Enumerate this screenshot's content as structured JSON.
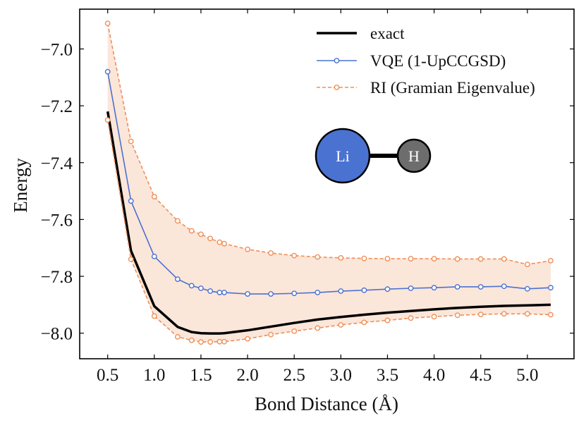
{
  "chart_data": {
    "type": "line",
    "title": "",
    "xlabel": "Bond Distance (Å)",
    "ylabel": "Energy",
    "xlim": [
      0.2,
      5.5
    ],
    "ylim": [
      -8.09,
      -6.86
    ],
    "grid": false,
    "legend_position": "top-right",
    "x_ticks": [
      0.5,
      1.0,
      1.5,
      2.0,
      2.5,
      3.0,
      3.5,
      4.0,
      4.5,
      5.0
    ],
    "x_tick_labels": [
      "0.5",
      "1.0",
      "1.5",
      "2.0",
      "2.5",
      "3.0",
      "3.5",
      "4.0",
      "4.5",
      "5.0"
    ],
    "y_ticks": [
      -8.0,
      -7.8,
      -7.6,
      -7.4,
      -7.2,
      -7.0
    ],
    "y_tick_labels": [
      "−8.0",
      "−7.8",
      "−7.6",
      "−7.4",
      "−7.2",
      "−7.0"
    ],
    "series": [
      {
        "name": "exact",
        "color": "#000000",
        "style": "solid",
        "markers": false,
        "x": [
          0.5,
          0.75,
          1.0,
          1.25,
          1.4,
          1.5,
          1.6,
          1.7,
          1.75,
          2.0,
          2.25,
          2.5,
          2.75,
          3.0,
          3.25,
          3.5,
          3.75,
          4.0,
          4.25,
          4.5,
          4.75,
          5.0,
          5.25
        ],
        "values": [
          -7.22,
          -7.71,
          -7.905,
          -7.978,
          -7.996,
          -8.0,
          -8.001,
          -8.001,
          -8.0,
          -7.99,
          -7.977,
          -7.964,
          -7.952,
          -7.943,
          -7.935,
          -7.928,
          -7.922,
          -7.916,
          -7.911,
          -7.907,
          -7.904,
          -7.902,
          -7.9
        ]
      },
      {
        "name": "VQE (1-UpCCGSD)",
        "color": "#4a72d0",
        "style": "solid",
        "markers": true,
        "x": [
          0.5,
          0.75,
          1.0,
          1.25,
          1.4,
          1.5,
          1.6,
          1.7,
          1.75,
          2.0,
          2.25,
          2.5,
          2.75,
          3.0,
          3.25,
          3.5,
          3.75,
          4.0,
          4.25,
          4.5,
          4.75,
          5.0,
          5.25
        ],
        "values": [
          -7.08,
          -7.535,
          -7.73,
          -7.81,
          -7.833,
          -7.842,
          -7.852,
          -7.857,
          -7.857,
          -7.862,
          -7.862,
          -7.86,
          -7.857,
          -7.852,
          -7.849,
          -7.845,
          -7.842,
          -7.84,
          -7.837,
          -7.837,
          -7.835,
          -7.844,
          -7.84
        ]
      },
      {
        "name": "RI (Gramian Eigenvalue)",
        "color": "#ef8f57",
        "style": "dashed",
        "markers": true,
        "x": [
          0.5,
          0.75,
          1.0,
          1.25,
          1.4,
          1.5,
          1.6,
          1.7,
          1.75,
          2.0,
          2.25,
          2.5,
          2.75,
          3.0,
          3.25,
          3.5,
          3.75,
          4.0,
          4.25,
          4.5,
          4.75,
          5.0,
          5.25
        ],
        "upper": [
          -6.91,
          -7.325,
          -7.52,
          -7.605,
          -7.64,
          -7.652,
          -7.667,
          -7.68,
          -7.685,
          -7.705,
          -7.718,
          -7.727,
          -7.732,
          -7.735,
          -7.737,
          -7.738,
          -7.738,
          -7.738,
          -7.739,
          -7.739,
          -7.739,
          -7.758,
          -7.745
        ],
        "lower": [
          -7.25,
          -7.74,
          -7.94,
          -8.013,
          -8.025,
          -8.031,
          -8.031,
          -8.03,
          -8.03,
          -8.02,
          -8.005,
          -7.993,
          -7.982,
          -7.971,
          -7.962,
          -7.955,
          -7.947,
          -7.942,
          -7.937,
          -7.934,
          -7.932,
          -7.932,
          -7.935
        ]
      }
    ],
    "band": {
      "color": "#fbe6da",
      "between": "RI (Gramian Eigenvalue)"
    }
  },
  "molecule": {
    "atoms": [
      {
        "label": "Li",
        "color": "#4a72d0"
      },
      {
        "label": "H",
        "color": "#6d6d6d"
      }
    ]
  }
}
